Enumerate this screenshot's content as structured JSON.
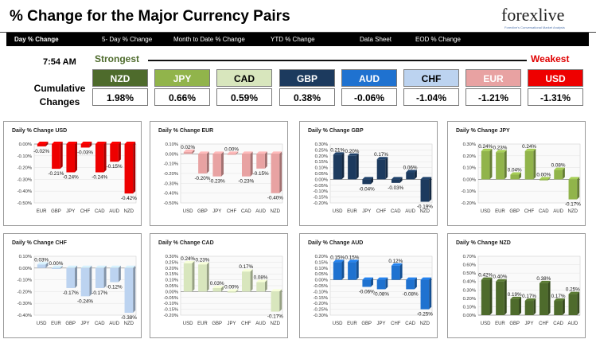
{
  "header": {
    "title": "% Change for the Major Currency Pairs",
    "logo_text": "forexlive",
    "logo_tagline": "Forexlive's Conversational Market Analysis"
  },
  "nav": [
    {
      "label": "Day % Change"
    },
    {
      "label": "5- Day % Change"
    },
    {
      "label": "Month to Date % Change"
    },
    {
      "label": "YTD % Change"
    },
    {
      "label": "Data Sheet"
    },
    {
      "label": "EOD % Change"
    }
  ],
  "summary": {
    "time": "7:54 AM",
    "strongest_label": "Strongest",
    "weakest_label": "Weakest",
    "cumulative_label_1": "Cumulative",
    "cumulative_label_2": "Changes",
    "currencies": [
      {
        "code": "NZD",
        "value": "1.98%",
        "bg": "#4e6b2c",
        "fg": "#ffffff"
      },
      {
        "code": "JPY",
        "value": "0.66%",
        "bg": "#91b44b",
        "fg": "#ffffff"
      },
      {
        "code": "CAD",
        "value": "0.59%",
        "bg": "#d8e6bd",
        "fg": "#000000"
      },
      {
        "code": "GBP",
        "value": "0.38%",
        "bg": "#1c3a5e",
        "fg": "#ffffff"
      },
      {
        "code": "AUD",
        "value": "-0.06%",
        "bg": "#1f72d0",
        "fg": "#ffffff"
      },
      {
        "code": "CHF",
        "value": "-1.04%",
        "bg": "#bcd3f0",
        "fg": "#000000"
      },
      {
        "code": "EUR",
        "value": "-1.21%",
        "bg": "#e8a2a2",
        "fg": "#ffffff"
      },
      {
        "code": "USD",
        "value": "-1.31%",
        "bg": "#ee0000",
        "fg": "#ffffff"
      }
    ]
  },
  "chart_data": [
    {
      "type": "bar",
      "title": "Daily % Change USD",
      "categories": [
        "EUR",
        "GBP",
        "JPY",
        "CHF",
        "CAD",
        "AUD",
        "NZD"
      ],
      "values": [
        -0.02,
        -0.21,
        -0.24,
        -0.03,
        -0.24,
        -0.15,
        -0.42
      ],
      "labels": [
        "-0.02%",
        "-0.21%",
        "-0.24%",
        "-0.03%",
        "-0.24%",
        "-0.15%",
        "-0.42%"
      ],
      "ylim": [
        -0.5,
        0.0
      ],
      "ticks": [
        0.0,
        -0.1,
        -0.2,
        -0.3,
        -0.4,
        -0.5
      ],
      "tick_labels": [
        "0.00%",
        "-0.10%",
        "-0.20%",
        "-0.30%",
        "-0.40%",
        "-0.50%"
      ],
      "color": "#ee0000"
    },
    {
      "type": "bar",
      "title": "Daily % Change EUR",
      "categories": [
        "USD",
        "GBP",
        "JPY",
        "CHF",
        "CAD",
        "AUD",
        "NZD"
      ],
      "values": [
        0.02,
        -0.2,
        -0.23,
        0.0,
        -0.23,
        -0.15,
        -0.4
      ],
      "labels": [
        "0.02%",
        "-0.20%",
        "-0.23%",
        "0.00%",
        "-0.23%",
        "-0.15%",
        "-0.40%"
      ],
      "ylim": [
        -0.5,
        0.1
      ],
      "ticks": [
        0.1,
        0.0,
        -0.1,
        -0.2,
        -0.3,
        -0.4,
        -0.5
      ],
      "tick_labels": [
        "0.10%",
        "0.00%",
        "-0.10%",
        "-0.20%",
        "-0.30%",
        "-0.40%",
        "-0.50%"
      ],
      "color": "#e8a2a2"
    },
    {
      "type": "bar",
      "title": "Daily % Change GBP",
      "categories": [
        "USD",
        "EUR",
        "JPY",
        "CHF",
        "CAD",
        "AUD",
        "NZD"
      ],
      "values": [
        0.21,
        0.2,
        -0.04,
        0.17,
        -0.03,
        0.06,
        -0.19
      ],
      "labels": [
        "0.21%",
        "0.20%",
        "-0.04%",
        "0.17%",
        "-0.03%",
        "0.06%",
        "-0.19%"
      ],
      "ylim": [
        -0.2,
        0.3
      ],
      "ticks": [
        0.3,
        0.25,
        0.2,
        0.15,
        0.1,
        0.05,
        0.0,
        -0.05,
        -0.1,
        -0.15,
        -0.2
      ],
      "tick_labels": [
        "0.30%",
        "0.25%",
        "0.20%",
        "0.15%",
        "0.10%",
        "0.05%",
        "0.00%",
        "-0.05%",
        "-0.10%",
        "-0.15%",
        "-0.20%"
      ],
      "color": "#1c3a5e"
    },
    {
      "type": "bar",
      "title": "Daily % Change JPY",
      "categories": [
        "USD",
        "EUR",
        "GBP",
        "CHF",
        "CAD",
        "AUD",
        "NZD"
      ],
      "values": [
        0.24,
        0.23,
        0.04,
        0.24,
        0.0,
        0.08,
        -0.17
      ],
      "labels": [
        "0.24%",
        "0.23%",
        "0.04%",
        "0.24%",
        "0.00%",
        "0.08%",
        "-0.17%"
      ],
      "ylim": [
        -0.2,
        0.3
      ],
      "ticks": [
        0.3,
        0.2,
        0.1,
        0.0,
        -0.1,
        -0.2
      ],
      "tick_labels": [
        "0.30%",
        "0.20%",
        "0.10%",
        "0.00%",
        "-0.10%",
        "-0.20%"
      ],
      "color": "#91b44b"
    },
    {
      "type": "bar",
      "title": "Daily % Change CHF",
      "categories": [
        "USD",
        "EUR",
        "GBP",
        "JPY",
        "CAD",
        "AUD",
        "NZD"
      ],
      "values": [
        0.03,
        0.0,
        -0.17,
        -0.24,
        -0.17,
        -0.12,
        -0.38
      ],
      "labels": [
        "0.03%",
        "0.00%",
        "-0.17%",
        "-0.24%",
        "-0.17%",
        "-0.12%",
        "-0.38%"
      ],
      "ylim": [
        -0.4,
        0.1
      ],
      "ticks": [
        0.1,
        0.0,
        -0.1,
        -0.2,
        -0.3,
        -0.4
      ],
      "tick_labels": [
        "0.10%",
        "0.00%",
        "-0.10%",
        "-0.20%",
        "-0.30%",
        "-0.40%"
      ],
      "color": "#bcd3f0"
    },
    {
      "type": "bar",
      "title": "Daily % Change CAD",
      "categories": [
        "USD",
        "EUR",
        "GBP",
        "JPY",
        "CHF",
        "AUD",
        "NZD"
      ],
      "values": [
        0.24,
        0.23,
        0.03,
        0.0,
        0.17,
        0.08,
        -0.17
      ],
      "labels": [
        "0.24%",
        "0.23%",
        "0.03%",
        "0.00%",
        "0.17%",
        "0.08%",
        "-0.17%"
      ],
      "ylim": [
        -0.2,
        0.3
      ],
      "ticks": [
        0.3,
        0.25,
        0.2,
        0.15,
        0.1,
        0.05,
        0.0,
        -0.05,
        -0.1,
        -0.15,
        -0.2
      ],
      "tick_labels": [
        "0.30%",
        "0.25%",
        "0.20%",
        "0.15%",
        "0.10%",
        "0.05%",
        "0.00%",
        "-0.05%",
        "-0.10%",
        "-0.15%",
        "-0.20%"
      ],
      "color": "#d8e6bd"
    },
    {
      "type": "bar",
      "title": "Daily % Change AUD",
      "categories": [
        "USD",
        "EUR",
        "GBP",
        "JPY",
        "CHF",
        "CAD",
        "NZD"
      ],
      "values": [
        0.15,
        0.15,
        -0.06,
        -0.08,
        0.12,
        -0.08,
        -0.25
      ],
      "labels": [
        "0.15%",
        "0.15%",
        "-0.06%",
        "-0.08%",
        "0.12%",
        "-0.08%",
        "-0.25%"
      ],
      "ylim": [
        -0.3,
        0.2
      ],
      "ticks": [
        0.2,
        0.15,
        0.1,
        0.05,
        0.0,
        -0.05,
        -0.1,
        -0.15,
        -0.2,
        -0.25,
        -0.3
      ],
      "tick_labels": [
        "0.20%",
        "0.15%",
        "0.10%",
        "0.05%",
        "0.00%",
        "-0.05%",
        "-0.10%",
        "-0.15%",
        "-0.20%",
        "-0.25%",
        "-0.30%"
      ],
      "color": "#1f72d0"
    },
    {
      "type": "bar",
      "title": "Daily % Change NZD",
      "categories": [
        "USD",
        "EUR",
        "GBP",
        "JPY",
        "CHF",
        "CAD",
        "AUD"
      ],
      "values": [
        0.42,
        0.4,
        0.19,
        0.17,
        0.38,
        0.17,
        0.25
      ],
      "labels": [
        "0.42%",
        "0.40%",
        "0.19%",
        "0.17%",
        "0.38%",
        "0.17%",
        "0.25%"
      ],
      "ylim": [
        0.0,
        0.7
      ],
      "ticks": [
        0.7,
        0.6,
        0.5,
        0.4,
        0.3,
        0.2,
        0.1,
        0.0
      ],
      "tick_labels": [
        "0.70%",
        "0.60%",
        "0.50%",
        "0.40%",
        "0.30%",
        "0.20%",
        "0.10%",
        "0.00%"
      ],
      "color": "#4e6b2c"
    }
  ]
}
